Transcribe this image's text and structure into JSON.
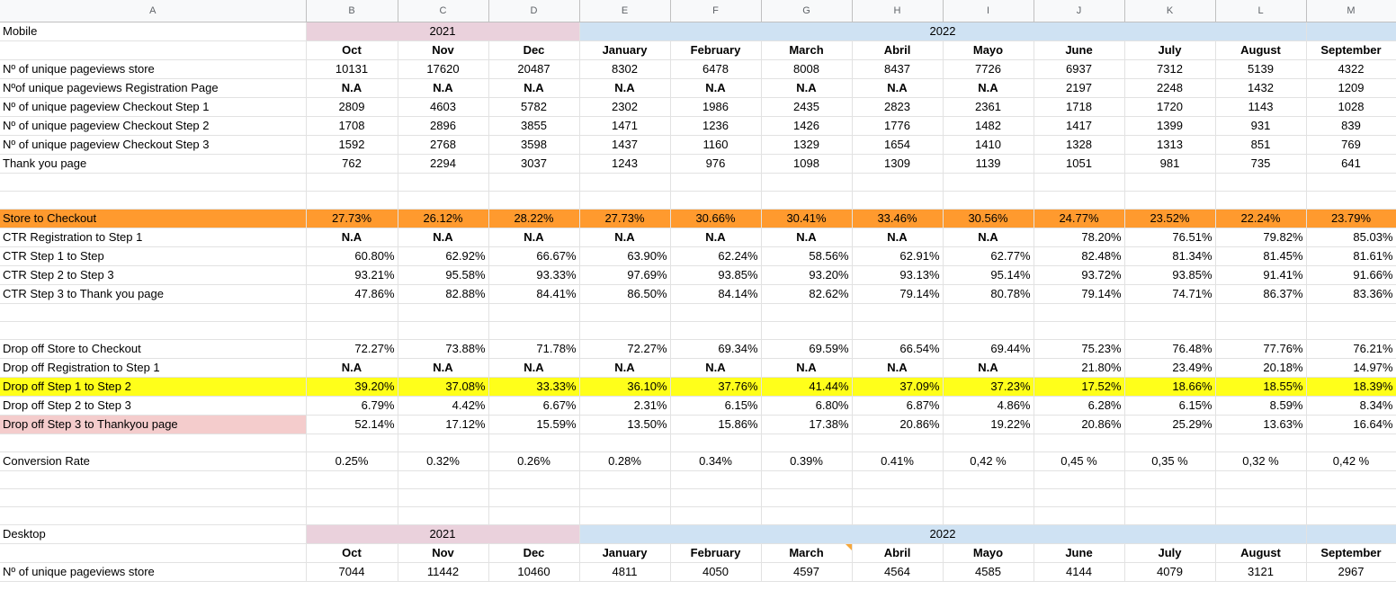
{
  "columns": [
    "A",
    "B",
    "C",
    "D",
    "E",
    "F",
    "G",
    "H",
    "I",
    "J",
    "K",
    "L",
    "M"
  ],
  "mobile": {
    "section_label": "Mobile",
    "year_2021": "2021",
    "year_2022": "2022",
    "months": [
      "Oct",
      "Nov",
      "Dec",
      "January",
      "February",
      "March",
      "Abril",
      "Mayo",
      "June",
      "July",
      "August",
      "September"
    ],
    "rows": [
      {
        "label": "Nº of unique pageviews store",
        "values": [
          "10131",
          "17620",
          "20487",
          "8302",
          "6478",
          "8008",
          "8437",
          "7726",
          "6937",
          "7312",
          "5139",
          "4322"
        ]
      },
      {
        "label": "Nºof unique pageviews Registration Page",
        "values": [
          "N.A",
          "N.A",
          "N.A",
          "N.A",
          "N.A",
          "N.A",
          "N.A",
          "N.A",
          "2197",
          "2248",
          "1432",
          "1209"
        ]
      },
      {
        "label": "Nº of unique pageview Checkout Step 1",
        "values": [
          "2809",
          "4603",
          "5782",
          "2302",
          "1986",
          "2435",
          "2823",
          "2361",
          "1718",
          "1720",
          "1143",
          "1028"
        ]
      },
      {
        "label": "Nº of unique pageview Checkout Step 2",
        "values": [
          "1708",
          "2896",
          "3855",
          "1471",
          "1236",
          "1426",
          "1776",
          "1482",
          "1417",
          "1399",
          "931",
          "839"
        ]
      },
      {
        "label": "Nº of unique pageview Checkout Step 3",
        "values": [
          "1592",
          "2768",
          "3598",
          "1437",
          "1160",
          "1329",
          "1654",
          "1410",
          "1328",
          "1313",
          "851",
          "769"
        ]
      },
      {
        "label": "Thank you page",
        "values": [
          "762",
          "2294",
          "3037",
          "1243",
          "976",
          "1098",
          "1309",
          "1139",
          "1051",
          "981",
          "735",
          "641"
        ]
      }
    ],
    "store_to_checkout": {
      "label": "Store to Checkout",
      "values": [
        "27.73%",
        "26.12%",
        "28.22%",
        "27.73%",
        "30.66%",
        "30.41%",
        "33.46%",
        "30.56%",
        "24.77%",
        "23.52%",
        "22.24%",
        "23.79%"
      ]
    },
    "ctr_rows": [
      {
        "label": "CTR Registration to Step 1",
        "values": [
          "N.A",
          "N.A",
          "N.A",
          "N.A",
          "N.A",
          "N.A",
          "N.A",
          "N.A",
          "78.20%",
          "76.51%",
          "79.82%",
          "85.03%"
        ]
      },
      {
        "label": "CTR Step 1 to Step",
        "values": [
          "60.80%",
          "62.92%",
          "66.67%",
          "63.90%",
          "62.24%",
          "58.56%",
          "62.91%",
          "62.77%",
          "82.48%",
          "81.34%",
          "81.45%",
          "81.61%"
        ]
      },
      {
        "label": "CTR Step 2 to Step 3",
        "values": [
          "93.21%",
          "95.58%",
          "93.33%",
          "97.69%",
          "93.85%",
          "93.20%",
          "93.13%",
          "95.14%",
          "93.72%",
          "93.85%",
          "91.41%",
          "91.66%"
        ]
      },
      {
        "label": "CTR Step 3 to Thank you page",
        "values": [
          "47.86%",
          "82.88%",
          "84.41%",
          "86.50%",
          "84.14%",
          "82.62%",
          "79.14%",
          "80.78%",
          "79.14%",
          "74.71%",
          "86.37%",
          "83.36%"
        ]
      }
    ],
    "drop_rows": [
      {
        "label": "Drop off Store to Checkout",
        "values": [
          "72.27%",
          "73.88%",
          "71.78%",
          "72.27%",
          "69.34%",
          "69.59%",
          "66.54%",
          "69.44%",
          "75.23%",
          "76.48%",
          "77.76%",
          "76.21%"
        ]
      },
      {
        "label": "Drop off Registration to Step 1",
        "values": [
          "N.A",
          "N.A",
          "N.A",
          "N.A",
          "N.A",
          "N.A",
          "N.A",
          "N.A",
          "21.80%",
          "23.49%",
          "20.18%",
          "14.97%"
        ]
      },
      {
        "label": "Drop off Step 1 to Step 2",
        "values": [
          "39.20%",
          "37.08%",
          "33.33%",
          "36.10%",
          "37.76%",
          "41.44%",
          "37.09%",
          "37.23%",
          "17.52%",
          "18.66%",
          "18.55%",
          "18.39%"
        ]
      },
      {
        "label": "Drop off Step 2 to Step 3",
        "values": [
          "6.79%",
          "4.42%",
          "6.67%",
          "2.31%",
          "6.15%",
          "6.80%",
          "6.87%",
          "4.86%",
          "6.28%",
          "6.15%",
          "8.59%",
          "8.34%"
        ]
      },
      {
        "label": "Drop off Step 3 to Thankyou page",
        "values": [
          "52.14%",
          "17.12%",
          "15.59%",
          "13.50%",
          "15.86%",
          "17.38%",
          "20.86%",
          "19.22%",
          "20.86%",
          "25.29%",
          "13.63%",
          "16.64%"
        ]
      }
    ],
    "conversion": {
      "label": "Conversion Rate",
      "values": [
        "0.25%",
        "0.32%",
        "0.26%",
        "0.28%",
        "0.34%",
        "0.39%",
        "0.41%",
        "0,42 %",
        "0,45 %",
        "0,35 %",
        "0,32 %",
        "0,42 %"
      ]
    }
  },
  "desktop": {
    "section_label": "Desktop",
    "year_2021": "2021",
    "year_2022": "2022",
    "months": [
      "Oct",
      "Nov",
      "Dec",
      "January",
      "February",
      "March",
      "Abril",
      "Mayo",
      "June",
      "July",
      "August",
      "September"
    ],
    "rows": [
      {
        "label": "Nº of unique pageviews store",
        "values": [
          "7044",
          "11442",
          "10460",
          "4811",
          "4050",
          "4597",
          "4564",
          "4585",
          "4144",
          "4079",
          "3121",
          "2967"
        ]
      }
    ]
  },
  "colors": {
    "pink": "#ead1dc",
    "blue": "#cfe2f3",
    "orange": "#ff9a2e",
    "yellow": "#ffff1a",
    "salmon": "#f4cccc"
  }
}
